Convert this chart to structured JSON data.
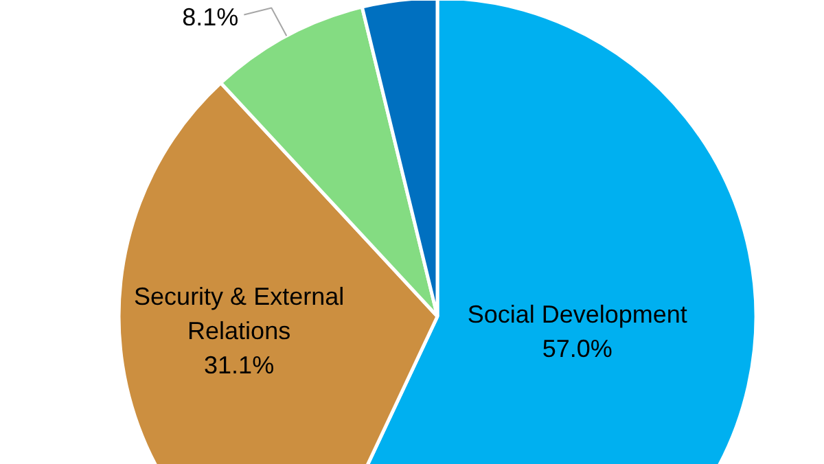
{
  "chart_data": {
    "type": "pie",
    "categories": [
      "Social Development",
      "Security & External Relations",
      null,
      null
    ],
    "values": [
      57.0,
      31.1,
      8.1,
      3.8
    ],
    "colors": [
      "#00b0f0",
      "#cc8f40",
      "#84dc82",
      "#0070c0"
    ],
    "value_labels": [
      "57.0%",
      "31.1%",
      "8.1%",
      null
    ]
  }
}
